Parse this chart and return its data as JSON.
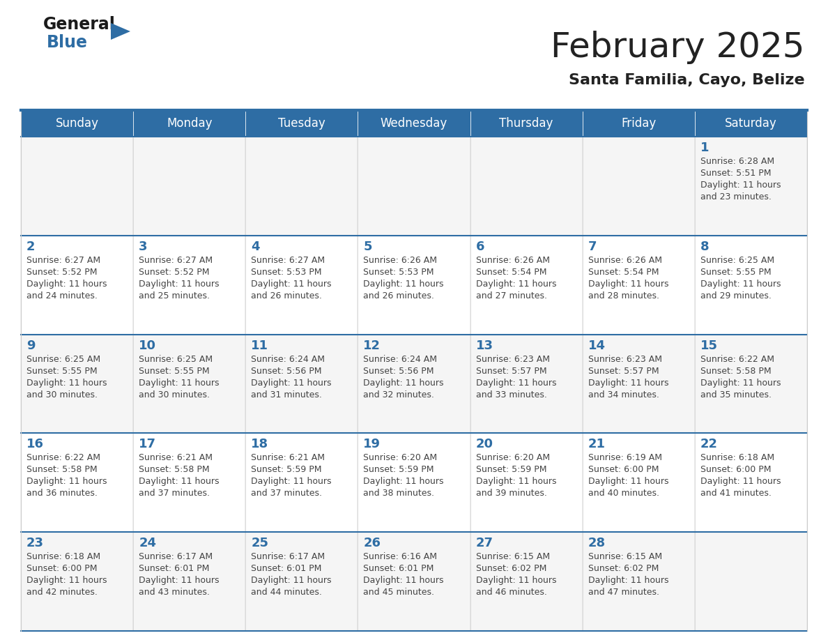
{
  "title": "February 2025",
  "subtitle": "Santa Familia, Cayo, Belize",
  "days_of_week": [
    "Sunday",
    "Monday",
    "Tuesday",
    "Wednesday",
    "Thursday",
    "Friday",
    "Saturday"
  ],
  "header_bg": "#2E6DA4",
  "header_text_color": "#FFFFFF",
  "cell_bg": "#FFFFFF",
  "cell_bg_alt": "#F5F5F5",
  "row_border_color": "#2E6DA4",
  "col_border_color": "#CCCCCC",
  "text_color": "#444444",
  "day_num_color": "#2E6DA4",
  "title_color": "#222222",
  "calendar_data": [
    [
      null,
      null,
      null,
      null,
      null,
      null,
      {
        "day": 1,
        "sunrise": "6:28 AM",
        "sunset": "5:51 PM",
        "daylight_suffix": "23 minutes."
      }
    ],
    [
      {
        "day": 2,
        "sunrise": "6:27 AM",
        "sunset": "5:52 PM",
        "daylight_suffix": "24 minutes."
      },
      {
        "day": 3,
        "sunrise": "6:27 AM",
        "sunset": "5:52 PM",
        "daylight_suffix": "25 minutes."
      },
      {
        "day": 4,
        "sunrise": "6:27 AM",
        "sunset": "5:53 PM",
        "daylight_suffix": "26 minutes."
      },
      {
        "day": 5,
        "sunrise": "6:26 AM",
        "sunset": "5:53 PM",
        "daylight_suffix": "26 minutes."
      },
      {
        "day": 6,
        "sunrise": "6:26 AM",
        "sunset": "5:54 PM",
        "daylight_suffix": "27 minutes."
      },
      {
        "day": 7,
        "sunrise": "6:26 AM",
        "sunset": "5:54 PM",
        "daylight_suffix": "28 minutes."
      },
      {
        "day": 8,
        "sunrise": "6:25 AM",
        "sunset": "5:55 PM",
        "daylight_suffix": "29 minutes."
      }
    ],
    [
      {
        "day": 9,
        "sunrise": "6:25 AM",
        "sunset": "5:55 PM",
        "daylight_suffix": "30 minutes."
      },
      {
        "day": 10,
        "sunrise": "6:25 AM",
        "sunset": "5:55 PM",
        "daylight_suffix": "30 minutes."
      },
      {
        "day": 11,
        "sunrise": "6:24 AM",
        "sunset": "5:56 PM",
        "daylight_suffix": "31 minutes."
      },
      {
        "day": 12,
        "sunrise": "6:24 AM",
        "sunset": "5:56 PM",
        "daylight_suffix": "32 minutes."
      },
      {
        "day": 13,
        "sunrise": "6:23 AM",
        "sunset": "5:57 PM",
        "daylight_suffix": "33 minutes."
      },
      {
        "day": 14,
        "sunrise": "6:23 AM",
        "sunset": "5:57 PM",
        "daylight_suffix": "34 minutes."
      },
      {
        "day": 15,
        "sunrise": "6:22 AM",
        "sunset": "5:58 PM",
        "daylight_suffix": "35 minutes."
      }
    ],
    [
      {
        "day": 16,
        "sunrise": "6:22 AM",
        "sunset": "5:58 PM",
        "daylight_suffix": "36 minutes."
      },
      {
        "day": 17,
        "sunrise": "6:21 AM",
        "sunset": "5:58 PM",
        "daylight_suffix": "37 minutes."
      },
      {
        "day": 18,
        "sunrise": "6:21 AM",
        "sunset": "5:59 PM",
        "daylight_suffix": "37 minutes."
      },
      {
        "day": 19,
        "sunrise": "6:20 AM",
        "sunset": "5:59 PM",
        "daylight_suffix": "38 minutes."
      },
      {
        "day": 20,
        "sunrise": "6:20 AM",
        "sunset": "5:59 PM",
        "daylight_suffix": "39 minutes."
      },
      {
        "day": 21,
        "sunrise": "6:19 AM",
        "sunset": "6:00 PM",
        "daylight_suffix": "40 minutes."
      },
      {
        "day": 22,
        "sunrise": "6:18 AM",
        "sunset": "6:00 PM",
        "daylight_suffix": "41 minutes."
      }
    ],
    [
      {
        "day": 23,
        "sunrise": "6:18 AM",
        "sunset": "6:00 PM",
        "daylight_suffix": "42 minutes."
      },
      {
        "day": 24,
        "sunrise": "6:17 AM",
        "sunset": "6:01 PM",
        "daylight_suffix": "43 minutes."
      },
      {
        "day": 25,
        "sunrise": "6:17 AM",
        "sunset": "6:01 PM",
        "daylight_suffix": "44 minutes."
      },
      {
        "day": 26,
        "sunrise": "6:16 AM",
        "sunset": "6:01 PM",
        "daylight_suffix": "45 minutes."
      },
      {
        "day": 27,
        "sunrise": "6:15 AM",
        "sunset": "6:02 PM",
        "daylight_suffix": "46 minutes."
      },
      {
        "day": 28,
        "sunrise": "6:15 AM",
        "sunset": "6:02 PM",
        "daylight_suffix": "47 minutes."
      },
      null
    ]
  ]
}
